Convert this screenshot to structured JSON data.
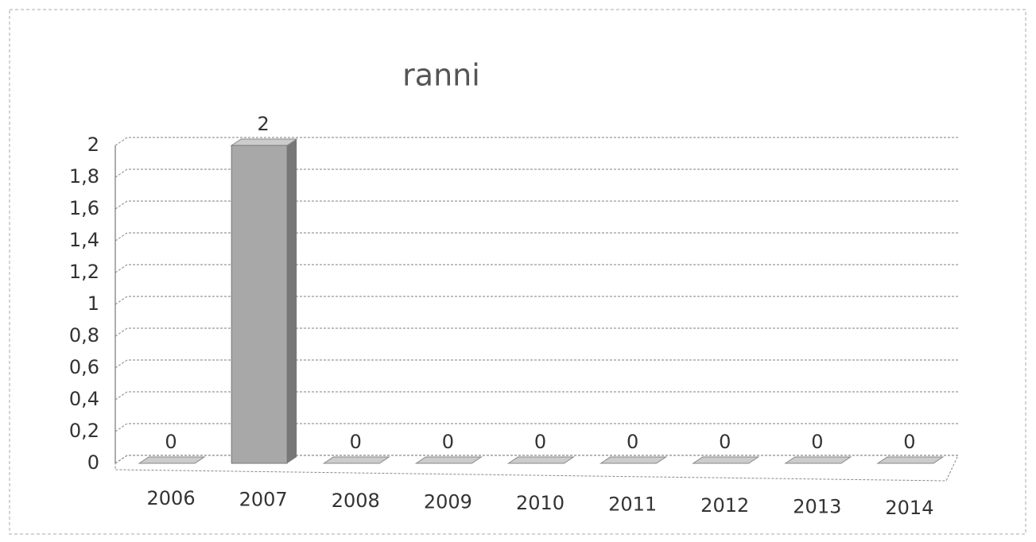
{
  "chart_data": {
    "type": "bar3d",
    "title": "ranni",
    "categories": [
      "2006",
      "2007",
      "2008",
      "2009",
      "2010",
      "2011",
      "2012",
      "2013",
      "2014"
    ],
    "values": [
      0,
      2,
      0,
      0,
      0,
      0,
      0,
      0,
      0
    ],
    "color": "#a8a8a8",
    "ylim": [
      0,
      2
    ],
    "yticks": [
      0,
      {
        "value": 0.2,
        "label": "0,2"
      },
      {
        "value": 0.4,
        "label": "0,4"
      },
      {
        "value": 0.6,
        "label": "0,6"
      },
      {
        "value": 0.8,
        "label": "0,8"
      },
      1,
      {
        "value": 1.2,
        "label": "1,2"
      },
      {
        "value": 1.4,
        "label": "1,4"
      },
      {
        "value": 1.6,
        "label": "1,6"
      },
      {
        "value": 1.8,
        "label": "1,8"
      },
      2
    ],
    "grid": true
  }
}
